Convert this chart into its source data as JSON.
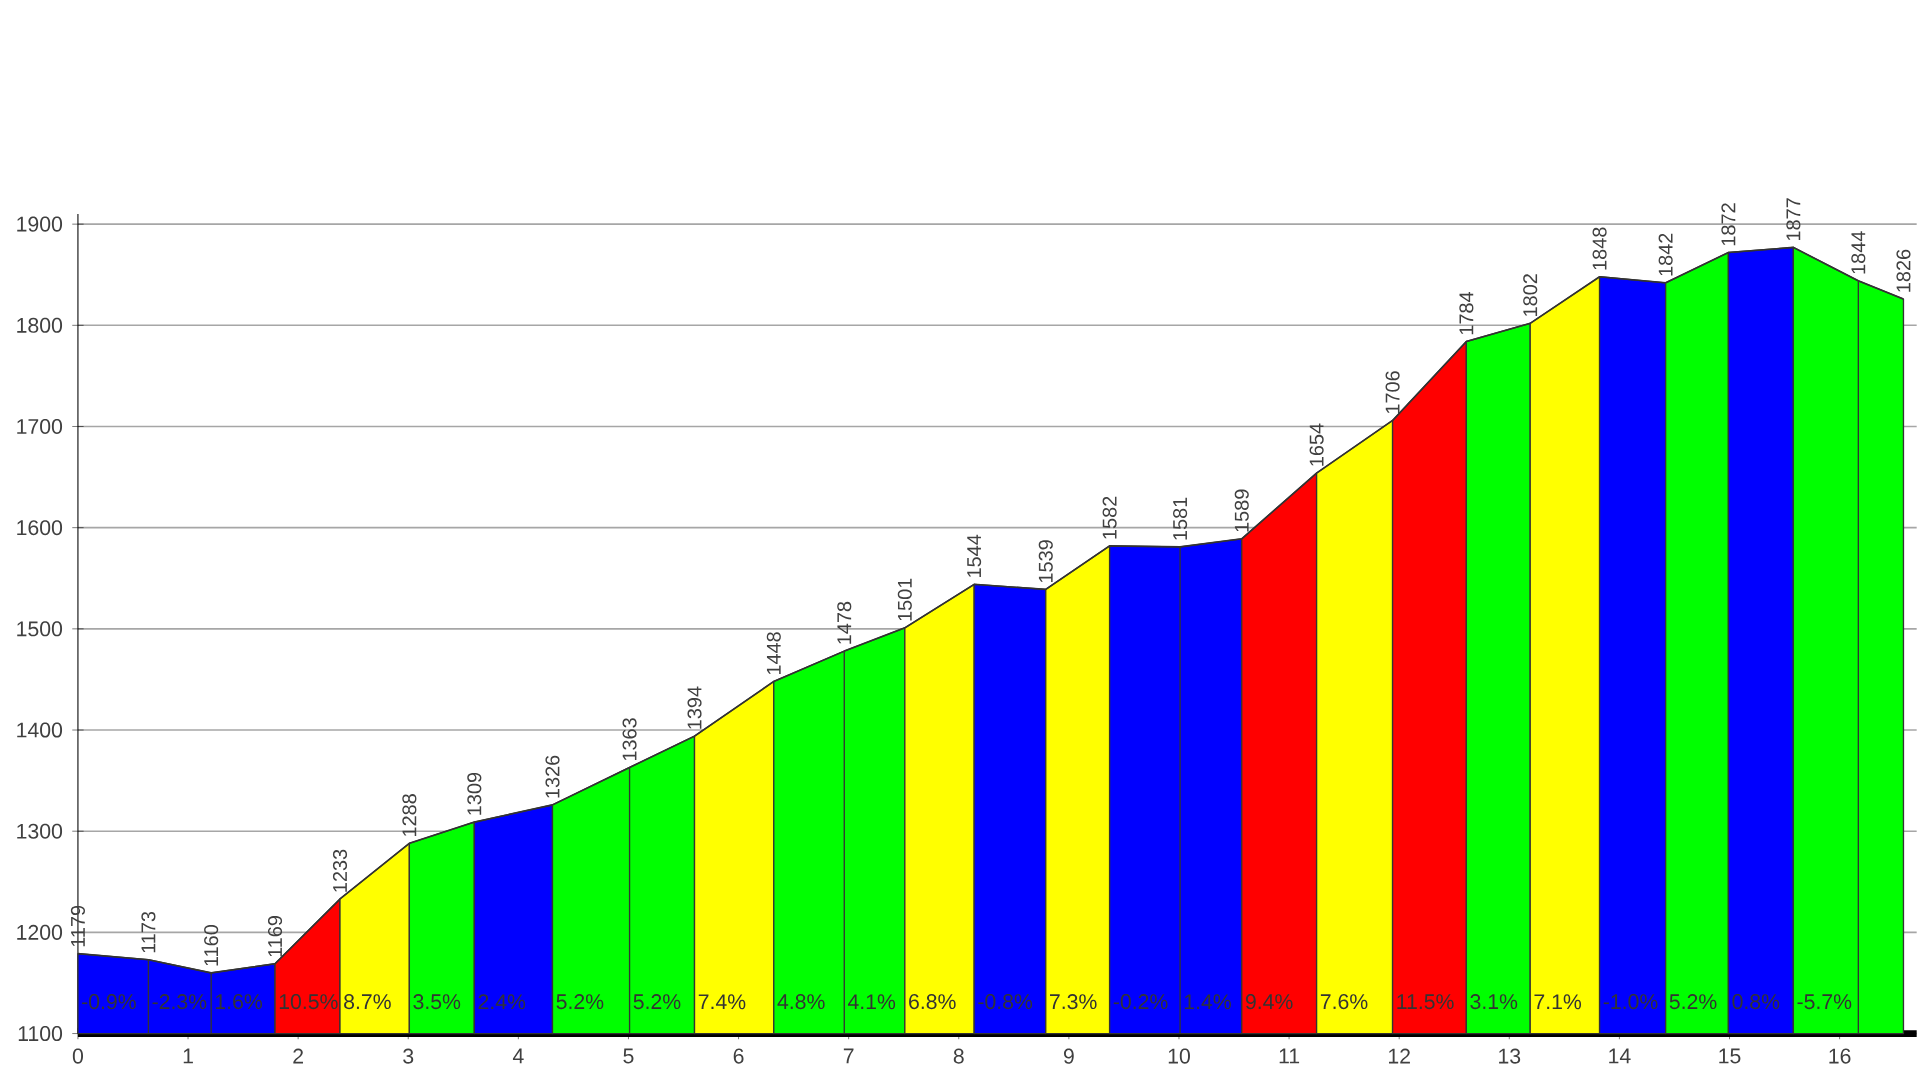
{
  "chart_data": {
    "type": "area",
    "series": [
      {
        "color": "#0000ff",
        "x": [
          0,
          0.64,
          1.21,
          1.79
        ],
        "values": [
          1179,
          1173,
          1160,
          1169
        ]
      },
      {
        "color": "#ff0000",
        "x": [
          1.79,
          2.38
        ],
        "values": [
          1169,
          1233
        ]
      },
      {
        "color": "#ffff00",
        "x": [
          2.38,
          3.01
        ],
        "values": [
          1233,
          1288
        ]
      },
      {
        "color": "#00ff00",
        "x": [
          3.01,
          3.6
        ],
        "values": [
          1288,
          1309
        ]
      },
      {
        "color": "#0000ff",
        "x": [
          3.6,
          4.31
        ],
        "values": [
          1309,
          1326
        ]
      },
      {
        "color": "#00ff00",
        "x": [
          4.31,
          5.01,
          5.6
        ],
        "values": [
          1326,
          1363,
          1394
        ]
      },
      {
        "color": "#ffff00",
        "x": [
          5.6,
          6.32
        ],
        "values": [
          1394,
          1448
        ]
      },
      {
        "color": "#00ff00",
        "x": [
          6.32,
          6.96,
          7.51
        ],
        "values": [
          1448,
          1478,
          1501
        ]
      },
      {
        "color": "#ffff00",
        "x": [
          7.51,
          8.14
        ],
        "values": [
          1501,
          1544
        ]
      },
      {
        "color": "#0000ff",
        "x": [
          8.14,
          8.79
        ],
        "values": [
          1544,
          1539
        ]
      },
      {
        "color": "#ffff00",
        "x": [
          8.79,
          9.37
        ],
        "values": [
          1539,
          1582
        ]
      },
      {
        "color": "#0000ff",
        "x": [
          9.37,
          10.01,
          10.57
        ],
        "values": [
          1582,
          1581,
          1589
        ]
      },
      {
        "color": "#ff0000",
        "x": [
          10.57,
          11.25
        ],
        "values": [
          1589,
          1654
        ]
      },
      {
        "color": "#ffff00",
        "x": [
          11.25,
          11.94
        ],
        "values": [
          1654,
          1706
        ]
      },
      {
        "color": "#ff0000",
        "x": [
          11.94,
          12.61
        ],
        "values": [
          1706,
          1784
        ]
      },
      {
        "color": "#00ff00",
        "x": [
          12.61,
          13.19
        ],
        "values": [
          1784,
          1802
        ]
      },
      {
        "color": "#ffff00",
        "x": [
          13.19,
          13.82
        ],
        "values": [
          1802,
          1848
        ]
      },
      {
        "color": "#0000ff",
        "x": [
          13.82,
          14.42
        ],
        "values": [
          1848,
          1842
        ]
      },
      {
        "color": "#00ff00",
        "x": [
          14.42,
          14.99
        ],
        "values": [
          1842,
          1872
        ]
      },
      {
        "color": "#0000ff",
        "x": [
          14.99,
          15.58
        ],
        "values": [
          1872,
          1877
        ]
      },
      {
        "color": "#00ff00",
        "x": [
          15.58,
          16.17,
          16.58
        ],
        "values": [
          1877,
          1844,
          1826
        ]
      },
      {
        "type": "line",
        "color": "#333333",
        "x": [
          0,
          0.64,
          1.21,
          1.79,
          2.38,
          3.01,
          3.6,
          4.31,
          5.01,
          5.6,
          6.32,
          6.96,
          7.51,
          8.14,
          8.79,
          9.37,
          10.01,
          10.57,
          11.25,
          11.94,
          12.61,
          13.19,
          13.82,
          14.42,
          14.99,
          15.58,
          16.17,
          16.58
        ],
        "values": [
          1179,
          1173,
          1160,
          1169,
          1233,
          1288,
          1309,
          1326,
          1363,
          1394,
          1448,
          1478,
          1501,
          1544,
          1539,
          1582,
          1581,
          1589,
          1654,
          1706,
          1784,
          1802,
          1848,
          1842,
          1872,
          1877,
          1844,
          1826
        ],
        "value_labels": [
          "1179",
          "1173",
          "1160",
          "1169",
          "1233",
          "1288",
          "1309",
          "1326",
          "1363",
          "1394",
          "1448",
          "1478",
          "1501",
          "1544",
          "1539",
          "1582",
          "1581",
          "1589",
          "1654",
          "1706",
          "1784",
          "1802",
          "1848",
          "1842",
          "1872",
          "1877",
          "1844",
          "1826"
        ]
      }
    ],
    "annotations": [
      "-0.9%",
      "-2.3%",
      "1.6%",
      "10.5%",
      "8.7%",
      "3.5%",
      "2.4%",
      "5.2%",
      "5.2%",
      "7.4%",
      "4.8%",
      "4.1%",
      "6.8%",
      "-0.8%",
      "7.3%",
      "-0.2%",
      "1.4%",
      "9.4%",
      "7.6%",
      "11.5%",
      "3.1%",
      "7.1%",
      "-1.0%",
      "5.2%",
      "0.8%",
      "-5.7%"
    ],
    "xlim": [
      0,
      16.7
    ],
    "ylim": [
      1100,
      1910
    ],
    "xticks": [
      0,
      1,
      2,
      3,
      4,
      5,
      6,
      7,
      8,
      9,
      10,
      11,
      12,
      13,
      14,
      15,
      16
    ],
    "yticks": [
      1100,
      1200,
      1300,
      1400,
      1500,
      1600,
      1700,
      1800,
      1900
    ],
    "grid": "y"
  }
}
